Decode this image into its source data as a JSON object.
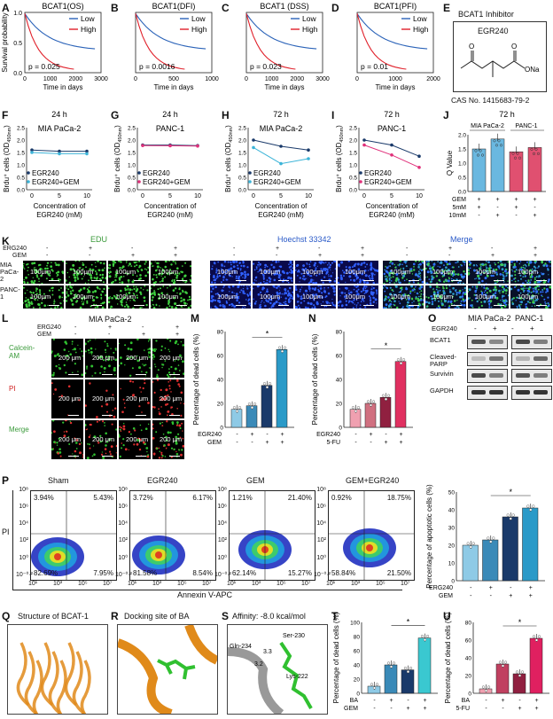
{
  "panels": {
    "A": "A",
    "B": "B",
    "C": "C",
    "D": "D",
    "E": "E",
    "F": "F",
    "G": "G",
    "H": "H",
    "I": "I",
    "J": "J",
    "K": "K",
    "L": "L",
    "M": "M",
    "N": "N",
    "O": "O",
    "P": "P",
    "Q": "Q",
    "R": "R",
    "S": "S",
    "T": "T",
    "U": "U"
  },
  "survival": {
    "ylabel": "Survival probability",
    "xlabel": "Time in days",
    "low": "Low",
    "high": "High",
    "plots": [
      {
        "title": "BCAT1(OS)",
        "p": "p = 0.025",
        "ticks": [
          "0",
          "1000",
          "2000",
          "3000"
        ]
      },
      {
        "title": "BCAT1(DFI)",
        "p": "p = 0.0016",
        "ticks": [
          "0",
          "500",
          "1000"
        ]
      },
      {
        "title": "BCAT1 (DSS)",
        "p": "p = 0.023",
        "ticks": [
          "0",
          "1000",
          "2000",
          "3000"
        ]
      },
      {
        "title": "BCAT1(PFI)",
        "p": "p = 0.01",
        "ticks": [
          "0",
          "1000",
          "2000"
        ]
      }
    ],
    "yticks": [
      "1.0",
      "0.5",
      "0.0"
    ],
    "colors": {
      "low": "#2a62b8",
      "high": "#e0202a"
    }
  },
  "inhibitor": {
    "title": "BCAT1 Inhibitor",
    "name": "EGR240",
    "atom_o1": "O",
    "atom_o2": "O",
    "atom_na": "ONa",
    "cas": "CAS No. 1415683-79-2"
  },
  "brdu": {
    "ylabel": "Brdu⁺ cells (OD",
    "ysub": "450nm",
    "xlabel1": "Concentration of",
    "xlabel2": "EGR240 (mM)",
    "xticks": [
      "0",
      "5",
      "10"
    ],
    "legend1": "EGR240",
    "legend2": "EGR240+GEM",
    "plots": [
      {
        "time": "24 h",
        "cell": "MIA PaCa-2",
        "yticks": [
          "2.5",
          "2.0",
          "1.5",
          "1.0",
          "0.5",
          "0.0"
        ],
        "s1": [
          1.6,
          1.55,
          1.55
        ],
        "s2": [
          1.5,
          1.45,
          1.45
        ]
      },
      {
        "time": "24 h",
        "cell": "PANC-1",
        "yticks": [
          "2.5",
          "2.0",
          "1.5",
          "1.0",
          "0.5",
          "0.0"
        ],
        "s1": [
          1.8,
          1.8,
          1.78
        ],
        "s2": [
          1.78,
          1.77,
          1.76
        ]
      },
      {
        "time": "72 h",
        "cell": "MIA PaCa-2",
        "yticks": [
          "2.5",
          "2.0",
          "1.5",
          "1.0",
          "0.5",
          "0.0"
        ],
        "s1": [
          2.0,
          1.75,
          1.6
        ],
        "s2": [
          1.7,
          1.05,
          1.25
        ]
      },
      {
        "time": "72 h",
        "cell": "PANC-1",
        "yticks": [
          "2.5",
          "2.0",
          "1.5",
          "1.0",
          "0.5",
          "0.0"
        ],
        "s1": [
          2.0,
          1.8,
          1.35
        ],
        "s2": [
          1.8,
          1.4,
          0.9
        ]
      }
    ],
    "colors": {
      "s1": "#1a3a6a",
      "s2_mia": "#3cb4d8",
      "s2_panc": "#e0307a"
    }
  },
  "qvalue": {
    "title": "72 h",
    "ylabel": "Q Value",
    "cell1": "MIA PaCa-2",
    "cell2": "PANC-1",
    "yticks": [
      "2.0",
      "1.5",
      "1.0",
      "0.5",
      "0.0"
    ],
    "rows": [
      {
        "label": "GEM",
        "vals": [
          "+",
          "+",
          "+",
          "+"
        ]
      },
      {
        "label": "5mM",
        "vals": [
          "+",
          "-",
          "+",
          "-"
        ]
      },
      {
        "label": "10mM",
        "vals": [
          "-",
          "+",
          "-",
          "+"
        ]
      }
    ],
    "values": [
      1.5,
      1.85,
      1.4,
      1.55
    ],
    "colors": [
      "#6ab8e0",
      "#6ab8e0",
      "#e05070",
      "#e05070"
    ]
  },
  "edu": {
    "titles": [
      "EDU",
      "Hoechst 33342",
      "Merge"
    ],
    "row_labels": [
      "MIA PaCa-2",
      "PANC-1"
    ],
    "treat_labels": [
      "ERG240",
      "GEM"
    ],
    "treat_signs": [
      [
        "-",
        "+",
        "-",
        "+"
      ],
      [
        "-",
        "-",
        "+",
        "+"
      ]
    ],
    "scale": "100μm",
    "title_colors": [
      "#3a9a3a",
      "#2a5ac8",
      "#2a5ac8"
    ]
  },
  "calcein": {
    "title": "MIA PaCa-2",
    "row_labels": [
      "Calcein-AM",
      "PI",
      "Merge"
    ],
    "treat_labels": [
      "ERG240",
      "GEM"
    ],
    "treat_signs": [
      [
        "-",
        "+",
        "-",
        "+"
      ],
      [
        "-",
        "-",
        "+",
        "+"
      ]
    ],
    "scale": "200 μm"
  },
  "deadM": {
    "ylabel": "Percentage of dead cells (%)",
    "yticks": [
      "80",
      "60",
      "40",
      "20",
      "0"
    ],
    "values": [
      15,
      18,
      35,
      65
    ],
    "row1": "EGR240",
    "row2": "GEM",
    "signs1": [
      "-",
      "+",
      "-",
      "+"
    ],
    "signs2": [
      "-",
      "-",
      "+",
      "+"
    ],
    "star": "*",
    "colors": [
      "#8ecae6",
      "#3a8ab8",
      "#1a3a6a",
      "#2a9ac8"
    ]
  },
  "deadN": {
    "ylabel": "Percentage of dead cells (%)",
    "yticks": [
      "80",
      "60",
      "40",
      "20",
      "0"
    ],
    "values": [
      15,
      20,
      25,
      55
    ],
    "row1": "EGR240",
    "row2": "5-FU",
    "signs1": [
      "-",
      "+",
      "-",
      "+"
    ],
    "signs2": [
      "-",
      "-",
      "+",
      "+"
    ],
    "star": "*",
    "colors": [
      "#f0a0b0",
      "#d07080",
      "#902040",
      "#e03060"
    ]
  },
  "western": {
    "cells": [
      "MIA PaCa-2",
      "PANC-1"
    ],
    "row_label": "EGR240",
    "signs": [
      "-",
      "+",
      "-",
      "+"
    ],
    "proteins": [
      "BCAT1",
      "Cleaved-PARP",
      "Survivin",
      "GAPDH"
    ]
  },
  "flow": {
    "titles": [
      "Sham",
      "EGR240",
      "GEM",
      "GEM+EGR240"
    ],
    "quadrants": [
      [
        "3.94%",
        "5.43%",
        "82.69%",
        "7.95%"
      ],
      [
        "3.72%",
        "6.17%",
        "81.58%",
        "8.54%"
      ],
      [
        "1.21%",
        "21.40%",
        "62.14%",
        "15.27%"
      ],
      [
        "0.92%",
        "18.75%",
        "58.84%",
        "21.50%"
      ]
    ],
    "yticks": [
      "10⁸",
      "10⁶",
      "10⁴",
      "10²",
      "10⁰",
      "10⁻⁰·²"
    ],
    "xticks": [
      "10¹",
      "10³",
      "10⁵",
      "10⁷"
    ],
    "ylabel": "PI",
    "xlabel": "Annexin V-APC"
  },
  "apopt": {
    "ylabel": "Percentage of apoptotic cells (%)",
    "yticks": [
      "50",
      "40",
      "30",
      "20",
      "10",
      "0"
    ],
    "values": [
      20,
      23,
      36,
      41
    ],
    "row1": "ERG240",
    "row2": "GEM",
    "signs1": [
      "-",
      "+",
      "-",
      "+"
    ],
    "signs2": [
      "-",
      "-",
      "+",
      "+"
    ],
    "star": "*"
  },
  "structure": {
    "q_title": "Structure of BCAT-1",
    "r_title": "Docking site of BA",
    "s_title": "Affinity: -8.0 kcal/mol",
    "residues": [
      "Gln-234",
      "Ser-230",
      "Lys-222"
    ],
    "d1": "3.3",
    "d2": "3.2"
  },
  "deadT": {
    "ylabel": "Percentage of dead cells (%)",
    "yticks": [
      "100",
      "80",
      "60",
      "40",
      "20",
      "0"
    ],
    "values": [
      10,
      40,
      33,
      78
    ],
    "row1": "BA",
    "row2": "GEM",
    "signs1": [
      "-",
      "+",
      "-",
      "+"
    ],
    "signs2": [
      "-",
      "-",
      "+",
      "+"
    ],
    "star": "*"
  },
  "deadU": {
    "ylabel": "Percentage of dead cells (%)",
    "yticks": [
      "80",
      "60",
      "40",
      "20",
      "0"
    ],
    "values": [
      5,
      33,
      22,
      62
    ],
    "row1": "BA",
    "row2": "5-FU",
    "signs1": [
      "-",
      "+",
      "-",
      "+"
    ],
    "signs2": [
      "-",
      "-",
      "+",
      "+"
    ],
    "star": "*"
  }
}
